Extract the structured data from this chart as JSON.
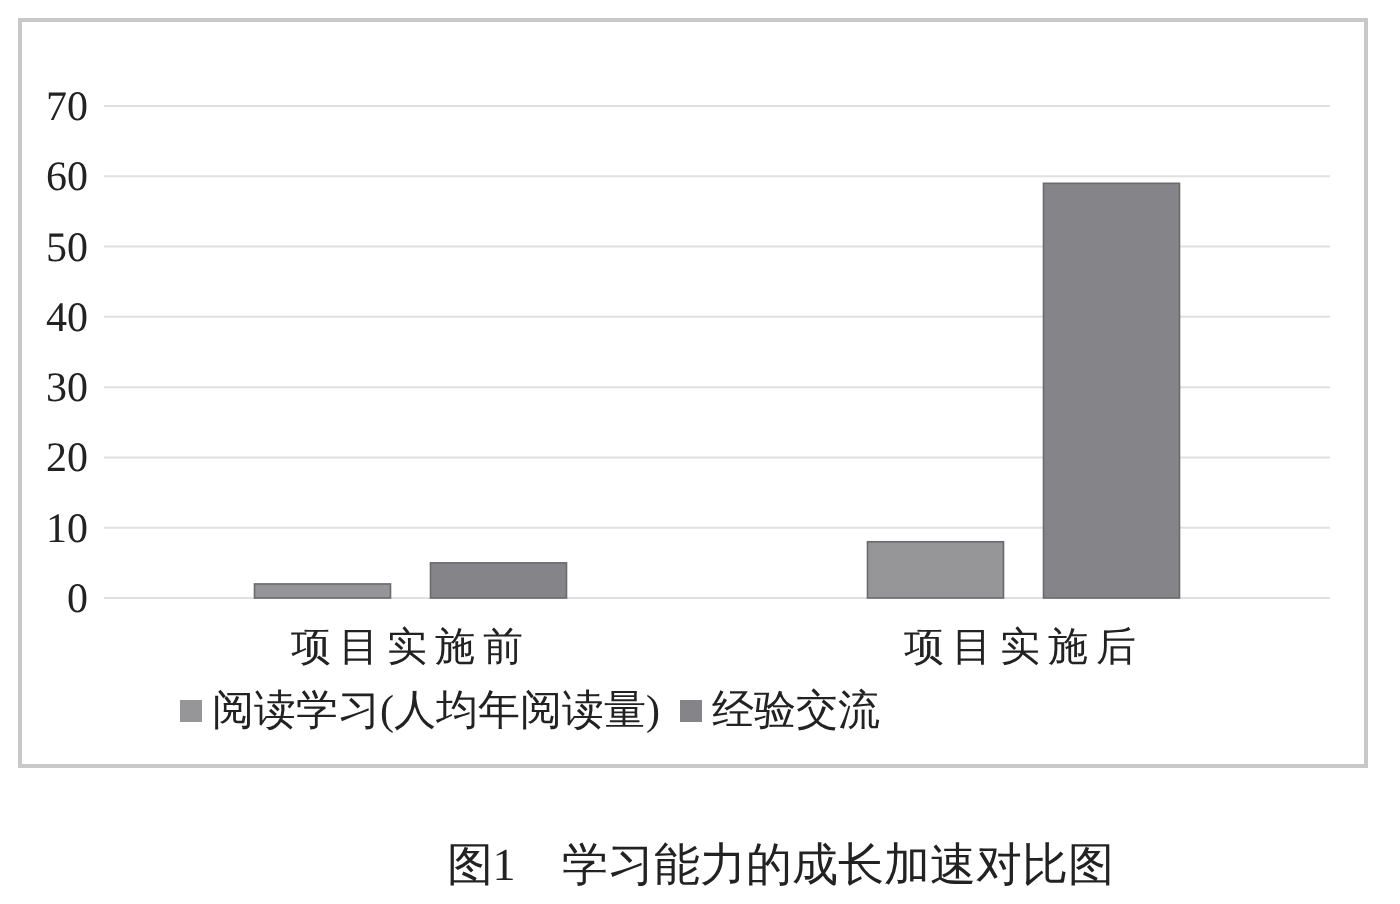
{
  "chart_data": {
    "type": "bar",
    "title": "图1　学习能力的成长加速对比图",
    "categories": [
      "项目实施前",
      "项目实施后"
    ],
    "series": [
      {
        "name": "阅读学习(人均年阅读量)",
        "color": "#969699",
        "values": [
          2,
          8
        ]
      },
      {
        "name": "经验交流",
        "color": "#858589",
        "values": [
          5,
          59
        ]
      }
    ],
    "ylim": [
      0,
      70
    ],
    "yticks": [
      0,
      10,
      20,
      30,
      40,
      50,
      60,
      70
    ],
    "grid": "y",
    "legend": "bottom"
  }
}
